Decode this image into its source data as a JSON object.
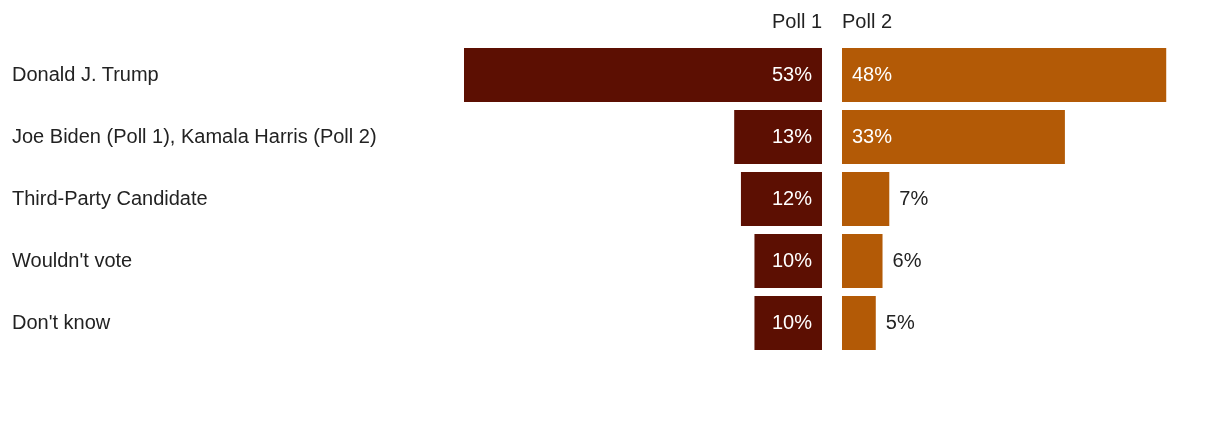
{
  "chart_data": [
    {
      "type": "bar",
      "orientation": "horizontal",
      "title": "Poll 1",
      "categories": [
        "Donald J. Trump",
        "Joe Biden (Poll 1), Kamala Harris (Poll 2)",
        "Third-Party Candidate",
        "Wouldn't vote",
        "Don't know"
      ],
      "values": [
        53,
        13,
        12,
        10,
        10
      ],
      "value_labels": [
        "53%",
        "13%",
        "12%",
        "10%",
        "10%"
      ],
      "color": "#5c0f02",
      "tick_labels": "y",
      "legend": false
    },
    {
      "type": "bar",
      "orientation": "horizontal",
      "title": "Poll 2",
      "categories": [
        null,
        null,
        null,
        null,
        null
      ],
      "values": [
        48,
        33,
        7,
        6,
        5
      ],
      "value_labels": [
        "48%",
        "33%",
        "7%",
        "6%",
        "5%"
      ],
      "color": "#b35a06",
      "tick_labels": false,
      "legend": false
    }
  ]
}
